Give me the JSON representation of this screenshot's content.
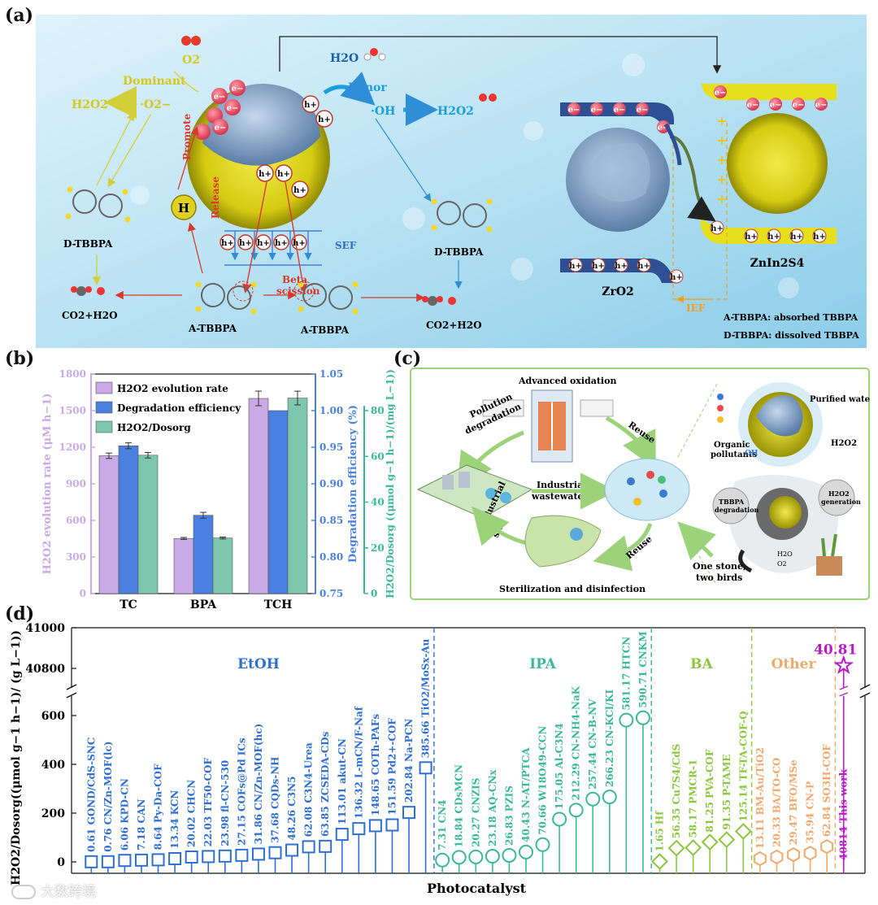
{
  "panels": {
    "a": "(a)",
    "b": "(b)",
    "c": "(c)",
    "d": "(d)"
  },
  "panel_a": {
    "o2": "O2",
    "dominant": "Dominant",
    "superoxide": "·O2−",
    "h2o2_left": "H2O2",
    "h2o": "H2O",
    "minor": "Minor",
    "oh": "·OH",
    "h2o2_right": "H2O2",
    "promote": "Promote",
    "release": "Release",
    "h_label": "H",
    "sef": "SEF",
    "beta": "Beta",
    "scission": "scission",
    "d_tbbpa_left": "D-TBBPA",
    "d_tbbpa_mid": "D-TBBPA",
    "a_tbbpa_1": "A-TBBPA",
    "a_tbbpa_2": "A-TBBPA",
    "co2_left": "CO2+H2O",
    "co2_right": "CO2+H2O",
    "zro2": "ZrO2",
    "znin2s4": "ZnIn2S4",
    "ief": "IEF",
    "legend_a": "A-TBBPA: absorbed TBBPA",
    "legend_d": "D-TBBPA: dissolved TBBPA",
    "electron": "e−",
    "hole": "h+",
    "plus": "+"
  },
  "panel_c": {
    "advanced": "Advanced oxidation",
    "pollution": "Pollution",
    "degradation": "degradation",
    "reuse_top": "Reuse",
    "reuse_bottom": "Reuse",
    "industrial": "Industrial",
    "wastewater": "wastewater",
    "industrial_site_1": "Industrial",
    "industrial_site_2": "site",
    "sterilization": "Sterilization and disinfection",
    "purified": "Purified water",
    "organic_1": "Organic",
    "organic_2": "pollutants",
    "h2o2": "H2O2",
    "one_stone_1": "One stone,",
    "one_stone_2": "two birds",
    "tbbpa_deg_1": "TBBPA",
    "tbbpa_deg_2": "degradation",
    "h2o2_gen_1": "H2O2",
    "h2o2_gen_2": "generation",
    "h2o_small": "H2O",
    "o2_small": "O2",
    "oh_small": "OH"
  },
  "colors": {
    "purple": "#c9a9e6",
    "blue": "#4a80e0",
    "teal": "#7cc7ae",
    "d_blue": "#2e6fcf",
    "d_teal": "#3bb89a",
    "d_green": "#8cc63f",
    "d_orange": "#f0a96c",
    "d_magenta": "#b81cc8"
  },
  "chart_data": [
    {
      "type": "bar",
      "panel": "b",
      "categories": [
        "TC",
        "BPA",
        "TCH"
      ],
      "series": [
        {
          "name": "H2O2 evolution rate",
          "axis": "left",
          "values": [
            1130,
            452,
            1600
          ],
          "errors": [
            22,
            8,
            60
          ]
        },
        {
          "name": "Degradation efficiency",
          "axis": "right1",
          "values": [
            0.952,
            0.857,
            1.0
          ],
          "errors": [
            0.004,
            0.004,
            0.0
          ]
        },
        {
          "name": "H2O2/Dosorg",
          "axis": "right2",
          "values": [
            60.5,
            24.3,
            85.5
          ],
          "errors": [
            1.2,
            0.4,
            3.0
          ]
        }
      ],
      "ylabel_left": "H2O2 evolution rate (μM h−1)",
      "ylabel_right1": "Degradation efficiency (%)",
      "ylabel_right2": "H2O2/Dosorg ((μmol g−1 h−1)/(mg L−1))",
      "ylim_left": [
        0,
        1800
      ],
      "yticks_left": [
        "0",
        "300",
        "600",
        "900",
        "1200",
        "1500",
        "1800"
      ],
      "ylim_right1": [
        0.75,
        1.05
      ],
      "yticks_right1": [
        "0.75",
        "0.80",
        "0.85",
        "0.90",
        "0.95",
        "1.00",
        "1.05"
      ],
      "ylim_right2": [
        0,
        96
      ],
      "yticks_right2": [
        "0",
        "20",
        "40",
        "60",
        "80"
      ],
      "legend_position": "top-left"
    },
    {
      "type": "scatter",
      "panel": "d",
      "xlabel": "Photocatalyst",
      "ylabel": "H2O2/Dosorg((μmol g−1 h−1)/ (g L−1))",
      "ylim_lower": [
        0,
        600
      ],
      "yticks_lower": [
        "0",
        "200",
        "400",
        "600"
      ],
      "ylim_upper": [
        40700,
        41000
      ],
      "yticks_upper": [
        "40800",
        "41000"
      ],
      "groups": [
        {
          "name": "EtOH",
          "color": "#2e6fcf",
          "marker": "square",
          "points": [
            {
              "value": 0.61,
              "label": "GOND/CdS-SNC"
            },
            {
              "value": 0.76,
              "label": "CN/Zn-MOF(lc)"
            },
            {
              "value": 6.06,
              "label": "KPD-CN"
            },
            {
              "value": 7.18,
              "label": "CAN"
            },
            {
              "value": 8.64,
              "label": "Py-Da-COF"
            },
            {
              "value": 13.34,
              "label": "KCN"
            },
            {
              "value": 20.02,
              "label": "CHCN"
            },
            {
              "value": 22.03,
              "label": "TF50-COF"
            },
            {
              "value": 23.98,
              "label": "fl-CN-530"
            },
            {
              "value": 27.15,
              "label": "COFs@Pd ICs"
            },
            {
              "value": 31.86,
              "label": "CN/Zn-MOF(hc)"
            },
            {
              "value": 37.68,
              "label": "CQDs-NH"
            },
            {
              "value": 48.26,
              "label": "C3N5"
            },
            {
              "value": 62.08,
              "label": "C3N4-Urea"
            },
            {
              "value": 63.85,
              "label": "ZCSEDA-CDs"
            },
            {
              "value": 113.01,
              "label": "akut-CN"
            },
            {
              "value": 136.32,
              "label": "L-mCN/F-Naf"
            },
            {
              "value": 148.65,
              "label": "COTh-PAFs"
            },
            {
              "value": 151.59,
              "label": "Pd2+-COF"
            },
            {
              "value": 202.84,
              "label": "Na-PCN"
            },
            {
              "value": 385.66,
              "label": "TiO2/MoSx-Au"
            }
          ]
        },
        {
          "name": "IPA",
          "color": "#3bb89a",
          "marker": "circle",
          "points": [
            {
              "value": 7.31,
              "label": "CN4"
            },
            {
              "value": 18.84,
              "label": "CDsMCN"
            },
            {
              "value": 20.27,
              "label": "CNZIS"
            },
            {
              "value": 23.18,
              "label": "AQ-CNx"
            },
            {
              "value": 26.83,
              "label": "PZIS"
            },
            {
              "value": 40.43,
              "label": "N-AT/PTCA"
            },
            {
              "value": 70.66,
              "label": "W18O49-CCN"
            },
            {
              "value": 175.05,
              "label": "Al-C3N4"
            },
            {
              "value": 212.29,
              "label": "CN-NH4-NaK"
            },
            {
              "value": 257.44,
              "label": "CN-B-NV"
            },
            {
              "value": 266.23,
              "label": "CN-KCl/KI"
            },
            {
              "value": 581.17,
              "label": "HTCN"
            },
            {
              "value": 590.71,
              "label": "CNKM"
            }
          ]
        },
        {
          "name": "BA",
          "color": "#8cc63f",
          "marker": "diamond",
          "points": [
            {
              "value": 1.65,
              "label": "Hf"
            },
            {
              "value": 56.35,
              "label": "Cu7S4/CdS"
            },
            {
              "value": 58.17,
              "label": "PMCR-1"
            },
            {
              "value": 81.25,
              "label": "PVA-COF"
            },
            {
              "value": 91.35,
              "label": "P-TAME"
            },
            {
              "value": 125.14,
              "label": "TF-TA-COF-Q"
            }
          ]
        },
        {
          "name": "Other",
          "color": "#f0a96c",
          "marker": "hexagon",
          "points": [
            {
              "value": 13.11,
              "label": "BM-Au/TiO2"
            },
            {
              "value": 20.33,
              "label": "BA/TO-CO"
            },
            {
              "value": 29.47,
              "label": "BFO/MSe"
            },
            {
              "value": 35.94,
              "label": "CN-P"
            },
            {
              "value": 62.84,
              "label": "SO3H-COF"
            }
          ]
        },
        {
          "name": "This work",
          "color": "#b81cc8",
          "marker": "star",
          "points": [
            {
              "value": 40814,
              "label": "This work",
              "display": "40814"
            }
          ]
        }
      ],
      "highlight_value_label": "40.81"
    }
  ],
  "watermark": "大数跨境"
}
